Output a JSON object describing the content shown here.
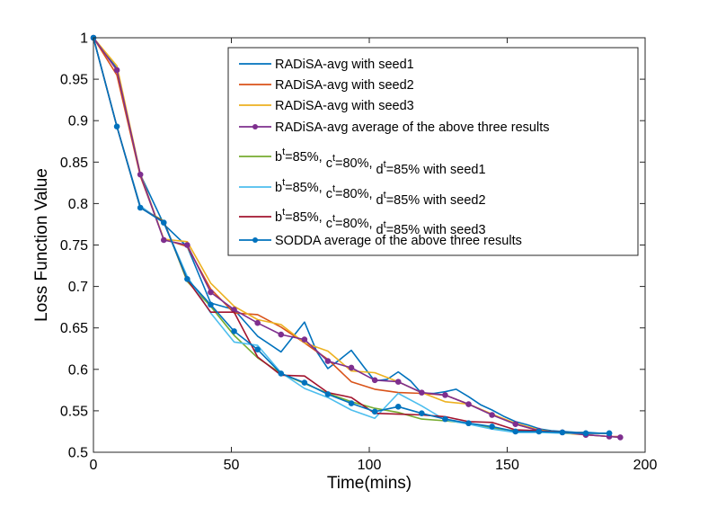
{
  "chart_data": {
    "type": "line",
    "title": "",
    "xlabel": "Time(mins)",
    "ylabel": "Loss Function Value",
    "xlim": [
      0,
      200
    ],
    "ylim": [
      0.5,
      1
    ],
    "xticks": [
      0,
      50,
      100,
      150,
      200
    ],
    "yticks": [
      0.5,
      0.55,
      0.6,
      0.65,
      0.7,
      0.75,
      0.8,
      0.85,
      0.9,
      0.95,
      1
    ],
    "xtick_labels": [
      "0",
      "50",
      "100",
      "150",
      "200"
    ],
    "ytick_labels": [
      "0.5",
      "0.55",
      "0.6",
      "0.65",
      "0.7",
      "0.75",
      "0.8",
      "0.85",
      "0.9",
      "0.95",
      "1"
    ],
    "grid": false,
    "legend_position": "top-right",
    "series": [
      {
        "name": "RADiSA-avg with seed1",
        "color": "#0072bd",
        "marker": false,
        "x": [
          0,
          8.5,
          17,
          25.5,
          34,
          42.5,
          51,
          59.5,
          68,
          76.5,
          81,
          85,
          89,
          93.5,
          98,
          102,
          106.5,
          110.5,
          115,
          119,
          123.5,
          127.5,
          131.5,
          136,
          140.5,
          144.5,
          149,
          153,
          157.5,
          162,
          166,
          170.5,
          175,
          179,
          183.5,
          188
        ],
        "values": [
          1,
          0.963,
          0.835,
          0.775,
          0.748,
          0.68,
          0.672,
          0.64,
          0.621,
          0.657,
          0.621,
          0.601,
          0.611,
          0.623,
          0.603,
          0.586,
          0.588,
          0.597,
          0.586,
          0.571,
          0.571,
          0.573,
          0.576,
          0.567,
          0.557,
          0.551,
          0.543,
          0.537,
          0.533,
          0.528,
          0.526,
          0.525,
          0.524,
          0.524,
          0.523,
          0.523
        ]
      },
      {
        "name": "RADiSA-avg with seed2",
        "color": "#d95319",
        "marker": false,
        "x": [
          0,
          8.5,
          17,
          25.5,
          34,
          42.5,
          51,
          59.5,
          68,
          76.5,
          85,
          93.5,
          102,
          110.5,
          119,
          127.5,
          136,
          144.5,
          153,
          161.5,
          170,
          178.5,
          187,
          191
        ],
        "values": [
          1,
          0.955,
          0.833,
          0.757,
          0.748,
          0.697,
          0.668,
          0.666,
          0.651,
          0.632,
          0.612,
          0.585,
          0.576,
          0.572,
          0.571,
          0.569,
          0.558,
          0.546,
          0.534,
          0.526,
          0.524,
          0.521,
          0.519,
          0.519
        ]
      },
      {
        "name": "RADiSA-avg with seed3",
        "color": "#edb120",
        "marker": false,
        "x": [
          0,
          8.5,
          17,
          25.5,
          34,
          42.5,
          51,
          59.5,
          68,
          76.5,
          85,
          93.5,
          102,
          110.5,
          119,
          127.5,
          136,
          144.5,
          153,
          161.5,
          170,
          178.5,
          187,
          191
        ],
        "values": [
          1,
          0.966,
          0.836,
          0.757,
          0.754,
          0.704,
          0.676,
          0.66,
          0.654,
          0.632,
          0.622,
          0.598,
          0.596,
          0.585,
          0.572,
          0.561,
          0.558,
          0.546,
          0.535,
          0.527,
          0.523,
          0.521,
          0.519,
          0.518
        ]
      },
      {
        "name": "RADiSA-avg average of the above three results",
        "color": "#7e2f8e",
        "marker": true,
        "x": [
          0,
          8.5,
          17,
          25.5,
          34,
          42.5,
          51,
          59.5,
          68,
          76.5,
          85,
          93.5,
          102,
          110.5,
          119,
          127.5,
          136,
          144.5,
          153,
          161.5,
          170,
          178.5,
          187,
          191
        ],
        "values": [
          1,
          0.961,
          0.835,
          0.756,
          0.75,
          0.693,
          0.672,
          0.656,
          0.642,
          0.636,
          0.61,
          0.602,
          0.587,
          0.585,
          0.572,
          0.569,
          0.558,
          0.545,
          0.534,
          0.526,
          0.524,
          0.521,
          0.519,
          0.518
        ]
      },
      {
        "name": "b^t=85%, c^t=80%, d^t=85% with seed1",
        "color": "#77ac30",
        "marker": false,
        "x": [
          0,
          8.5,
          17,
          25.5,
          34,
          42.5,
          51,
          59.5,
          68,
          76.5,
          85,
          93.5,
          102,
          110.5,
          119,
          127.5,
          136,
          144.5,
          153,
          161.5,
          170,
          178.5,
          187
        ],
        "values": [
          1,
          0.893,
          0.795,
          0.779,
          0.706,
          0.676,
          0.641,
          0.614,
          0.595,
          0.583,
          0.571,
          0.561,
          0.553,
          0.548,
          0.54,
          0.538,
          0.535,
          0.529,
          0.526,
          0.526,
          0.524,
          0.523,
          0.523
        ]
      },
      {
        "name": "b^t=85%, c^t=80%, d^t=85% with seed2",
        "color": "#4dbeee",
        "marker": false,
        "x": [
          0,
          8.5,
          17,
          25.5,
          34,
          42.5,
          51,
          59.5,
          68,
          76.5,
          85,
          93.5,
          102,
          110.5,
          119,
          127.5,
          136,
          144.5,
          153,
          161.5,
          170,
          178.5,
          187
        ],
        "values": [
          1,
          0.893,
          0.797,
          0.777,
          0.712,
          0.668,
          0.633,
          0.629,
          0.596,
          0.577,
          0.566,
          0.551,
          0.541,
          0.571,
          0.556,
          0.539,
          0.534,
          0.528,
          0.524,
          0.524,
          0.523,
          0.523,
          0.523
        ]
      },
      {
        "name": "b^t=85%, c^t=80%, d^t=85% with seed3",
        "color": "#a2142f",
        "marker": false,
        "x": [
          0,
          8.5,
          17,
          25.5,
          34,
          42.5,
          51,
          59.5,
          68,
          76.5,
          85,
          93.5,
          102,
          110.5,
          119,
          127.5,
          136,
          144.5,
          153,
          161.5,
          170,
          178.5,
          187
        ],
        "values": [
          1,
          0.893,
          0.795,
          0.778,
          0.708,
          0.669,
          0.669,
          0.615,
          0.593,
          0.592,
          0.572,
          0.566,
          0.547,
          0.546,
          0.545,
          0.543,
          0.537,
          0.536,
          0.527,
          0.526,
          0.524,
          0.523,
          0.523
        ]
      },
      {
        "name": "SODDA average of the above three results",
        "color": "#0072bd",
        "marker": true,
        "x": [
          0,
          8.5,
          17,
          25.5,
          34,
          42.5,
          51,
          59.5,
          68,
          76.5,
          85,
          93.5,
          102,
          110.5,
          119,
          127.5,
          136,
          144.5,
          153,
          161.5,
          170,
          178.5,
          187
        ],
        "values": [
          1,
          0.893,
          0.795,
          0.777,
          0.709,
          0.678,
          0.646,
          0.624,
          0.595,
          0.584,
          0.57,
          0.559,
          0.549,
          0.555,
          0.547,
          0.54,
          0.535,
          0.531,
          0.525,
          0.525,
          0.524,
          0.523,
          0.523
        ]
      }
    ],
    "legend_labels": [
      {
        "kind": "plain",
        "text": "RADiSA-avg with seed1"
      },
      {
        "kind": "plain",
        "text": "RADiSA-avg with seed2"
      },
      {
        "kind": "plain",
        "text": "RADiSA-avg with seed3"
      },
      {
        "kind": "plain",
        "text": "RADiSA-avg average of the above three results"
      },
      {
        "kind": "sup",
        "b": "b",
        "c": "c",
        "d": "d",
        "sup": "t",
        "b_val": "=85%, ",
        "c_val": "=80%, ",
        "d_val": "=85% with seed1"
      },
      {
        "kind": "sup",
        "b": "b",
        "c": "c",
        "d": "d",
        "sup": "t",
        "b_val": "=85%, ",
        "c_val": "=80%, ",
        "d_val": "=85% with seed2"
      },
      {
        "kind": "sup",
        "b": "b",
        "c": "c",
        "d": "d",
        "sup": "t",
        "b_val": "=85%, ",
        "c_val": "=80%, ",
        "d_val": "=85% with seed3"
      },
      {
        "kind": "plain",
        "text": "SODDA average of the above three results"
      }
    ]
  }
}
